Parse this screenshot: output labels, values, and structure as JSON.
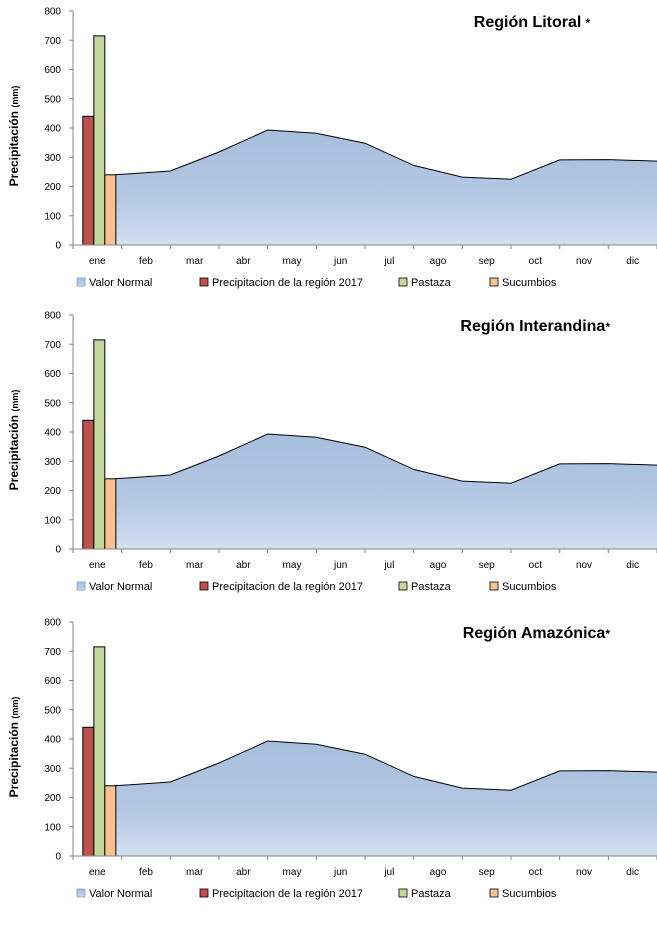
{
  "colors": {
    "valor_normal_top": "#a6bedd",
    "valor_normal_bottom": "#d2dff0",
    "precip_2017": "#c0504d",
    "pastaza": "#c3d69b",
    "sucumbios": "#fac090"
  },
  "chart_data": [
    {
      "type": "area",
      "title": "Región Litoral",
      "title_suffix": "*",
      "ylabel": "Precipitación",
      "ylabel_unit": "(mm)",
      "ylim": [
        0,
        800
      ],
      "yticks": [
        0,
        100,
        200,
        300,
        400,
        500,
        600,
        700,
        800
      ],
      "categories": [
        "ene",
        "feb",
        "mar",
        "abr",
        "may",
        "jun",
        "jul",
        "ago",
        "sep",
        "oct",
        "nov",
        "dic"
      ],
      "legend_position": "bottom",
      "series": [
        {
          "name": "Valor Normal",
          "type": "area",
          "values": [
            240,
            253,
            318,
            393,
            382,
            348,
            272,
            232,
            225,
            291,
            292,
            287
          ]
        },
        {
          "name": "Precipitacion de la región 2017",
          "type": "bar",
          "values": [
            440,
            null,
            null,
            null,
            null,
            null,
            null,
            null,
            null,
            null,
            null,
            null
          ]
        },
        {
          "name": "Pastaza",
          "type": "bar",
          "values": [
            715,
            null,
            null,
            null,
            null,
            null,
            null,
            null,
            null,
            null,
            null,
            null
          ]
        },
        {
          "name": "Sucumbios",
          "type": "bar",
          "values": [
            240,
            null,
            null,
            null,
            null,
            null,
            null,
            null,
            null,
            null,
            null,
            null
          ]
        }
      ]
    },
    {
      "type": "area",
      "title": "Región Interandina",
      "title_suffix": "*",
      "ylabel": "Precipitación",
      "ylabel_unit": "(mm)",
      "ylim": [
        0,
        800
      ],
      "yticks": [
        0,
        100,
        200,
        300,
        400,
        500,
        600,
        700,
        800
      ],
      "categories": [
        "ene",
        "feb",
        "mar",
        "abr",
        "may",
        "jun",
        "jul",
        "ago",
        "sep",
        "oct",
        "nov",
        "dic"
      ],
      "legend_position": "bottom",
      "series": [
        {
          "name": "Valor Normal",
          "type": "area",
          "values": [
            240,
            253,
            318,
            393,
            382,
            348,
            272,
            232,
            225,
            291,
            292,
            287
          ]
        },
        {
          "name": "Precipitacion de la región 2017",
          "type": "bar",
          "values": [
            440,
            null,
            null,
            null,
            null,
            null,
            null,
            null,
            null,
            null,
            null,
            null
          ]
        },
        {
          "name": "Pastaza",
          "type": "bar",
          "values": [
            715,
            null,
            null,
            null,
            null,
            null,
            null,
            null,
            null,
            null,
            null,
            null
          ]
        },
        {
          "name": "Sucumbios",
          "type": "bar",
          "values": [
            240,
            null,
            null,
            null,
            null,
            null,
            null,
            null,
            null,
            null,
            null,
            null
          ]
        }
      ]
    },
    {
      "type": "area",
      "title": "Región Amazónica",
      "title_suffix": "*",
      "ylabel": "Precipitación",
      "ylabel_unit": "(mm)",
      "ylim": [
        0,
        800
      ],
      "yticks": [
        0,
        100,
        200,
        300,
        400,
        500,
        600,
        700,
        800
      ],
      "categories": [
        "ene",
        "feb",
        "mar",
        "abr",
        "may",
        "jun",
        "jul",
        "ago",
        "sep",
        "oct",
        "nov",
        "dic"
      ],
      "legend_position": "bottom",
      "series": [
        {
          "name": "Valor Normal",
          "type": "area",
          "values": [
            240,
            253,
            318,
            393,
            382,
            348,
            272,
            232,
            225,
            291,
            292,
            287
          ]
        },
        {
          "name": "Precipitacion de la región 2017",
          "type": "bar",
          "values": [
            440,
            null,
            null,
            null,
            null,
            null,
            null,
            null,
            null,
            null,
            null,
            null
          ]
        },
        {
          "name": "Pastaza",
          "type": "bar",
          "values": [
            715,
            null,
            null,
            null,
            null,
            null,
            null,
            null,
            null,
            null,
            null,
            null
          ]
        },
        {
          "name": "Sucumbios",
          "type": "bar",
          "values": [
            240,
            null,
            null,
            null,
            null,
            null,
            null,
            null,
            null,
            null,
            null,
            null
          ]
        }
      ]
    }
  ]
}
